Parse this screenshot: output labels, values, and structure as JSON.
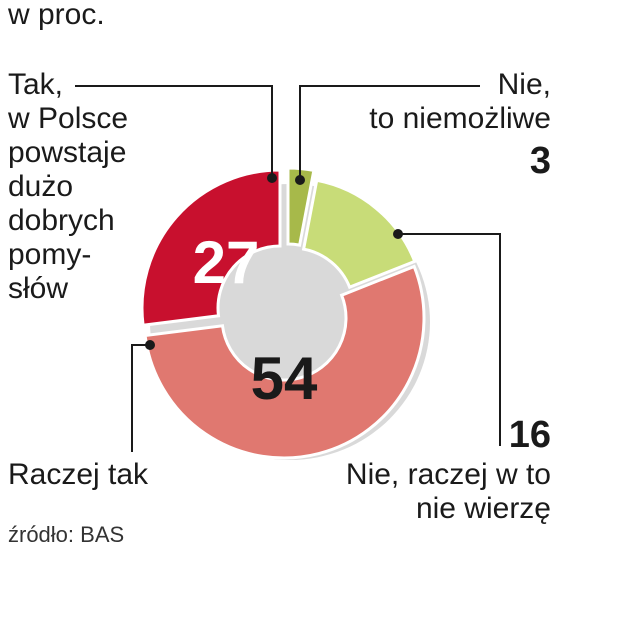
{
  "unit_label": "w proc.",
  "source": "źródło: BAS",
  "chart_data": {
    "type": "pie",
    "variant": "donut",
    "slices": [
      {
        "label": "Tak,\nw Polsce\npowstaje\ndużo\ndobrych\npomy-\nsłów",
        "value": 27,
        "color": "#c8102e",
        "value_label": "27"
      },
      {
        "label": "Nie,\nto niemożliwe",
        "value": 3,
        "color": "#a7b94a",
        "value_label": "3"
      },
      {
        "label": "Nie, raczej w to\nnie wierzę",
        "value": 16,
        "color": "#c8dc78",
        "value_label": "16"
      },
      {
        "label": "Raczej tak",
        "value": 54,
        "color": "#e07870",
        "value_label": "54"
      }
    ]
  }
}
